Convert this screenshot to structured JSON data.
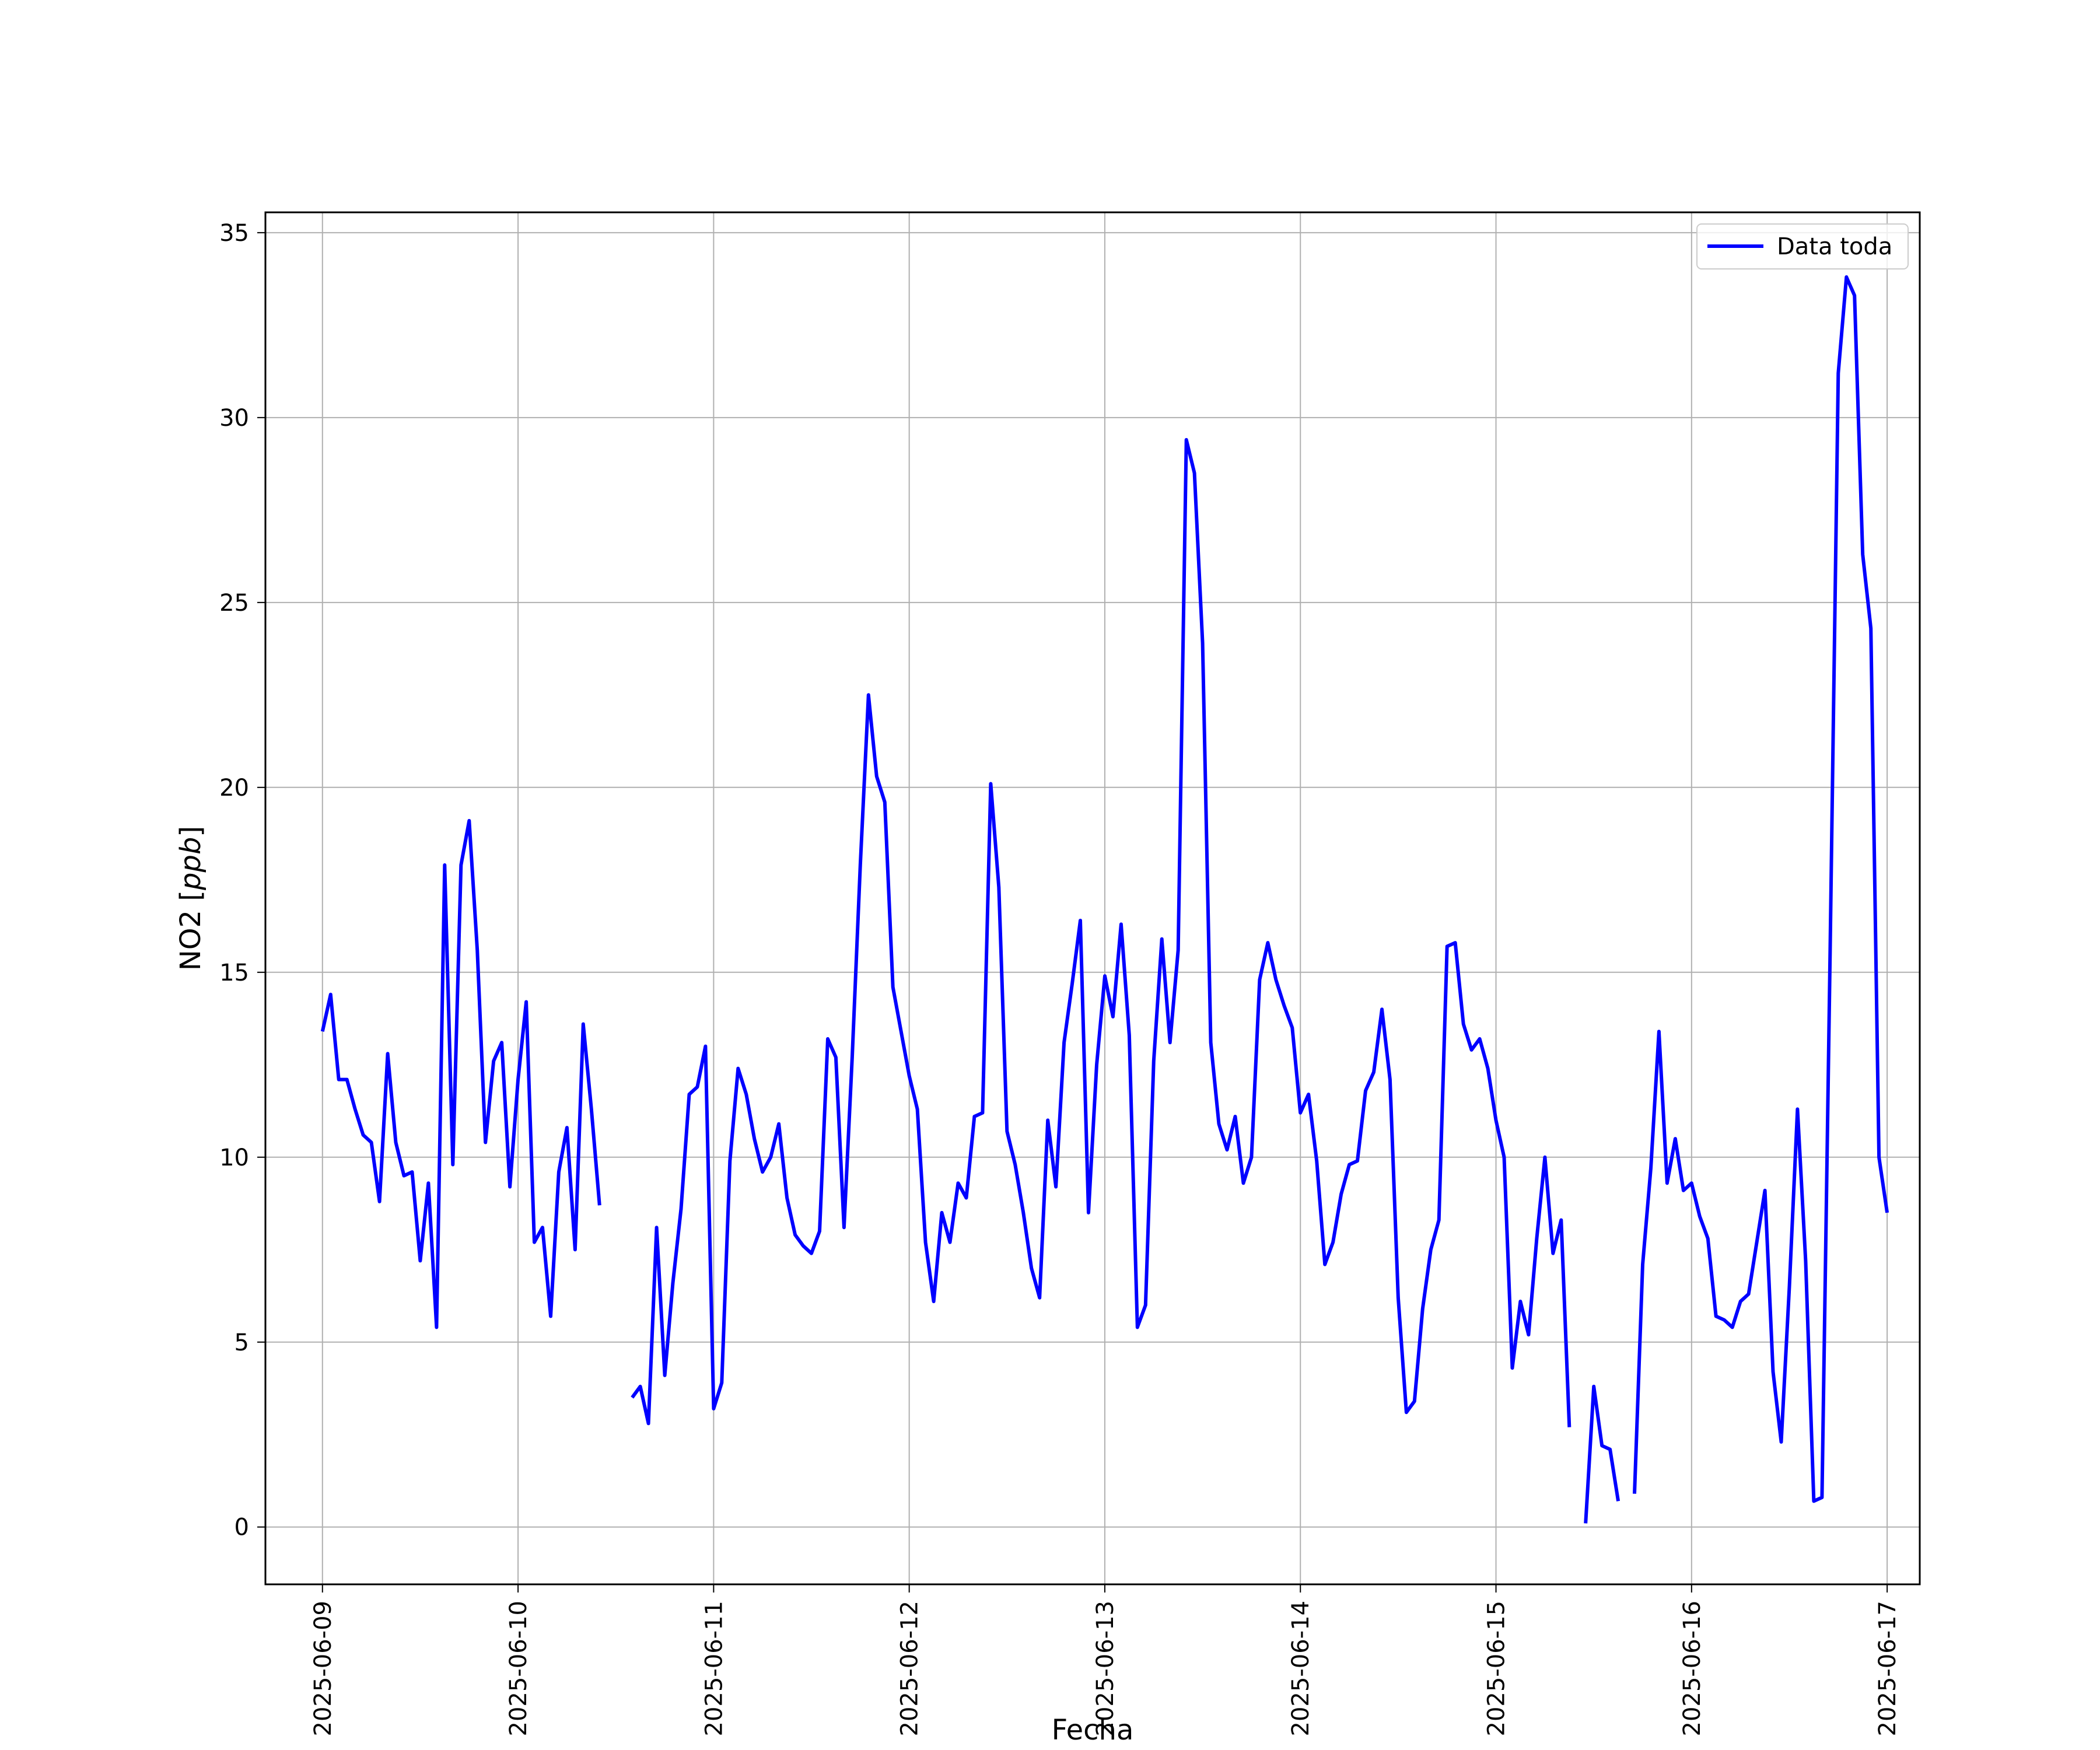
{
  "chart_data": {
    "type": "line",
    "xlabel": "Fecha",
    "ylabel_prefix": "NO2 [",
    "ylabel_unit": "ppb",
    "ylabel_suffix": "]",
    "x_ticks": [
      "2025-06-09",
      "2025-06-10",
      "2025-06-11",
      "2025-06-12",
      "2025-06-13",
      "2025-06-14",
      "2025-06-15",
      "2025-06-16",
      "2025-06-17"
    ],
    "y_ticks": [
      "0",
      "5",
      "10",
      "15",
      "20",
      "25",
      "30",
      "35"
    ],
    "xlim": [
      "2025-06-08T17:00",
      "2025-06-17T04:00"
    ],
    "ylim": [
      -1.55,
      35.55
    ],
    "grid": true,
    "legend_position": "top-right",
    "series": [
      {
        "name": "Data toda",
        "color": "#0000ff",
        "segments": [
          [
            [
              "2025-06-09T00:00",
              13.4
            ],
            [
              "2025-06-09T01:00",
              14.4
            ],
            [
              "2025-06-09T02:00",
              12.1
            ],
            [
              "2025-06-09T03:00",
              12.1
            ],
            [
              "2025-06-09T04:00",
              11.3
            ],
            [
              "2025-06-09T05:00",
              10.6
            ],
            [
              "2025-06-09T06:00",
              10.4
            ],
            [
              "2025-06-09T07:00",
              8.8
            ],
            [
              "2025-06-09T08:00",
              12.8
            ],
            [
              "2025-06-09T09:00",
              10.4
            ],
            [
              "2025-06-09T10:00",
              9.5
            ],
            [
              "2025-06-09T11:00",
              9.6
            ],
            [
              "2025-06-09T12:00",
              7.2
            ],
            [
              "2025-06-09T13:00",
              9.3
            ],
            [
              "2025-06-09T14:00",
              5.4
            ],
            [
              "2025-06-09T15:00",
              17.9
            ],
            [
              "2025-06-09T16:00",
              9.8
            ],
            [
              "2025-06-09T17:00",
              17.9
            ],
            [
              "2025-06-09T18:00",
              19.1
            ],
            [
              "2025-06-09T19:00",
              15.6
            ],
            [
              "2025-06-09T20:00",
              10.4
            ],
            [
              "2025-06-09T21:00",
              12.6
            ],
            [
              "2025-06-09T22:00",
              13.1
            ],
            [
              "2025-06-09T23:00",
              9.2
            ],
            [
              "2025-06-10T00:00",
              12.1
            ],
            [
              "2025-06-10T01:00",
              14.2
            ],
            [
              "2025-06-10T02:00",
              7.7
            ],
            [
              "2025-06-10T03:00",
              8.1
            ],
            [
              "2025-06-10T04:00",
              5.7
            ],
            [
              "2025-06-10T05:00",
              9.6
            ],
            [
              "2025-06-10T06:00",
              10.8
            ],
            [
              "2025-06-10T07:00",
              7.5
            ],
            [
              "2025-06-10T08:00",
              13.6
            ],
            [
              "2025-06-10T09:00",
              11.3
            ],
            [
              "2025-06-10T10:00",
              8.7
            ]
          ],
          [
            [
              "2025-06-10T14:00",
              3.5
            ],
            [
              "2025-06-10T15:00",
              3.8
            ],
            [
              "2025-06-10T16:00",
              2.8
            ],
            [
              "2025-06-10T17:00",
              8.1
            ],
            [
              "2025-06-10T18:00",
              4.1
            ],
            [
              "2025-06-10T19:00",
              6.6
            ],
            [
              "2025-06-10T20:00",
              8.6
            ],
            [
              "2025-06-10T21:00",
              11.7
            ],
            [
              "2025-06-10T22:00",
              11.9
            ],
            [
              "2025-06-10T23:00",
              13.0
            ],
            [
              "2025-06-11T00:00",
              3.2
            ],
            [
              "2025-06-11T01:00",
              3.9
            ],
            [
              "2025-06-11T02:00",
              9.9
            ],
            [
              "2025-06-11T03:00",
              12.4
            ],
            [
              "2025-06-11T04:00",
              11.7
            ],
            [
              "2025-06-11T05:00",
              10.5
            ],
            [
              "2025-06-11T06:00",
              9.6
            ],
            [
              "2025-06-11T07:00",
              10.0
            ],
            [
              "2025-06-11T08:00",
              10.9
            ],
            [
              "2025-06-11T09:00",
              8.9
            ],
            [
              "2025-06-11T10:00",
              7.9
            ],
            [
              "2025-06-11T11:00",
              7.6
            ],
            [
              "2025-06-11T12:00",
              7.4
            ],
            [
              "2025-06-11T13:00",
              8.0
            ],
            [
              "2025-06-11T14:00",
              13.2
            ],
            [
              "2025-06-11T15:00",
              12.7
            ],
            [
              "2025-06-11T16:00",
              8.1
            ],
            [
              "2025-06-11T17:00",
              12.7
            ],
            [
              "2025-06-11T18:00",
              17.9
            ],
            [
              "2025-06-11T19:00",
              22.5
            ],
            [
              "2025-06-11T20:00",
              20.3
            ],
            [
              "2025-06-11T21:00",
              19.6
            ],
            [
              "2025-06-11T22:00",
              14.6
            ],
            [
              "2025-06-11T23:00",
              13.4
            ],
            [
              "2025-06-12T00:00",
              12.2
            ],
            [
              "2025-06-12T01:00",
              11.3
            ],
            [
              "2025-06-12T02:00",
              7.7
            ],
            [
              "2025-06-12T03:00",
              6.1
            ],
            [
              "2025-06-12T04:00",
              8.5
            ],
            [
              "2025-06-12T05:00",
              7.7
            ],
            [
              "2025-06-12T06:00",
              9.3
            ],
            [
              "2025-06-12T07:00",
              8.9
            ],
            [
              "2025-06-12T08:00",
              11.1
            ],
            [
              "2025-06-12T09:00",
              11.2
            ],
            [
              "2025-06-12T10:00",
              20.1
            ],
            [
              "2025-06-12T11:00",
              17.3
            ],
            [
              "2025-06-12T12:00",
              10.7
            ],
            [
              "2025-06-12T13:00",
              9.8
            ],
            [
              "2025-06-12T14:00",
              8.5
            ],
            [
              "2025-06-12T15:00",
              7.0
            ],
            [
              "2025-06-12T16:00",
              6.2
            ],
            [
              "2025-06-12T17:00",
              11.0
            ],
            [
              "2025-06-12T18:00",
              9.2
            ],
            [
              "2025-06-12T19:00",
              13.1
            ],
            [
              "2025-06-12T20:00",
              14.7
            ],
            [
              "2025-06-12T21:00",
              16.4
            ],
            [
              "2025-06-12T22:00",
              8.5
            ],
            [
              "2025-06-12T23:00",
              12.5
            ],
            [
              "2025-06-13T00:00",
              14.9
            ],
            [
              "2025-06-13T01:00",
              13.8
            ],
            [
              "2025-06-13T02:00",
              16.3
            ],
            [
              "2025-06-13T03:00",
              13.3
            ],
            [
              "2025-06-13T04:00",
              5.4
            ],
            [
              "2025-06-13T05:00",
              6.0
            ],
            [
              "2025-06-13T06:00",
              12.6
            ],
            [
              "2025-06-13T07:00",
              15.9
            ],
            [
              "2025-06-13T08:00",
              13.1
            ],
            [
              "2025-06-13T09:00",
              15.6
            ],
            [
              "2025-06-13T10:00",
              29.4
            ],
            [
              "2025-06-13T11:00",
              28.5
            ],
            [
              "2025-06-13T12:00",
              23.9
            ],
            [
              "2025-06-13T13:00",
              13.1
            ],
            [
              "2025-06-13T14:00",
              10.9
            ],
            [
              "2025-06-13T15:00",
              10.2
            ],
            [
              "2025-06-13T16:00",
              11.1
            ],
            [
              "2025-06-13T17:00",
              9.3
            ],
            [
              "2025-06-13T18:00",
              10.0
            ],
            [
              "2025-06-13T19:00",
              14.8
            ],
            [
              "2025-06-13T20:00",
              15.8
            ],
            [
              "2025-06-13T21:00",
              14.8
            ],
            [
              "2025-06-13T22:00",
              14.1
            ],
            [
              "2025-06-13T23:00",
              13.5
            ],
            [
              "2025-06-14T00:00",
              11.2
            ],
            [
              "2025-06-14T01:00",
              11.7
            ],
            [
              "2025-06-14T02:00",
              9.9
            ],
            [
              "2025-06-14T03:00",
              7.1
            ],
            [
              "2025-06-14T04:00",
              7.7
            ],
            [
              "2025-06-14T05:00",
              9.0
            ],
            [
              "2025-06-14T06:00",
              9.8
            ],
            [
              "2025-06-14T07:00",
              9.9
            ],
            [
              "2025-06-14T08:00",
              11.8
            ],
            [
              "2025-06-14T09:00",
              12.3
            ],
            [
              "2025-06-14T10:00",
              14.0
            ],
            [
              "2025-06-14T11:00",
              12.1
            ],
            [
              "2025-06-14T12:00",
              6.2
            ],
            [
              "2025-06-14T13:00",
              3.1
            ],
            [
              "2025-06-14T14:00",
              3.4
            ],
            [
              "2025-06-14T15:00",
              5.9
            ],
            [
              "2025-06-14T16:00",
              7.5
            ],
            [
              "2025-06-14T17:00",
              8.3
            ],
            [
              "2025-06-14T18:00",
              15.7
            ],
            [
              "2025-06-14T19:00",
              15.8
            ],
            [
              "2025-06-14T20:00",
              13.6
            ],
            [
              "2025-06-14T21:00",
              12.9
            ],
            [
              "2025-06-14T22:00",
              13.2
            ],
            [
              "2025-06-14T23:00",
              12.4
            ],
            [
              "2025-06-15T00:00",
              11.0
            ],
            [
              "2025-06-15T01:00",
              10.0
            ],
            [
              "2025-06-15T02:00",
              4.3
            ],
            [
              "2025-06-15T03:00",
              6.1
            ],
            [
              "2025-06-15T04:00",
              5.2
            ],
            [
              "2025-06-15T05:00",
              7.8
            ],
            [
              "2025-06-15T06:00",
              10.0
            ],
            [
              "2025-06-15T07:00",
              7.4
            ],
            [
              "2025-06-15T08:00",
              8.3
            ],
            [
              "2025-06-15T09:00",
              2.7
            ]
          ],
          [
            [
              "2025-06-15T11:00",
              0.1
            ],
            [
              "2025-06-15T12:00",
              3.8
            ],
            [
              "2025-06-15T13:00",
              2.2
            ],
            [
              "2025-06-15T14:00",
              2.1
            ],
            [
              "2025-06-15T15:00",
              0.7
            ]
          ],
          [
            [
              "2025-06-15T17:00",
              0.9
            ],
            [
              "2025-06-15T18:00",
              7.1
            ],
            [
              "2025-06-15T19:00",
              9.7
            ],
            [
              "2025-06-15T20:00",
              13.4
            ],
            [
              "2025-06-15T21:00",
              9.3
            ],
            [
              "2025-06-15T22:00",
              10.5
            ],
            [
              "2025-06-15T23:00",
              9.1
            ],
            [
              "2025-06-16T00:00",
              9.3
            ],
            [
              "2025-06-16T01:00",
              8.4
            ],
            [
              "2025-06-16T02:00",
              7.8
            ],
            [
              "2025-06-16T03:00",
              5.7
            ],
            [
              "2025-06-16T04:00",
              5.6
            ],
            [
              "2025-06-16T05:00",
              5.4
            ],
            [
              "2025-06-16T06:00",
              6.1
            ],
            [
              "2025-06-16T07:00",
              6.3
            ],
            [
              "2025-06-16T08:00",
              7.7
            ],
            [
              "2025-06-16T09:00",
              9.1
            ],
            [
              "2025-06-16T10:00",
              4.2
            ],
            [
              "2025-06-16T11:00",
              2.3
            ],
            [
              "2025-06-16T12:00",
              6.5
            ],
            [
              "2025-06-16T13:00",
              11.3
            ],
            [
              "2025-06-16T14:00",
              7.2
            ],
            [
              "2025-06-16T15:00",
              0.7
            ],
            [
              "2025-06-16T16:00",
              0.8
            ],
            [
              "2025-06-16T17:00",
              15.5
            ],
            [
              "2025-06-16T18:00",
              31.2
            ],
            [
              "2025-06-16T19:00",
              33.8
            ],
            [
              "2025-06-16T20:00",
              33.3
            ],
            [
              "2025-06-16T21:00",
              26.3
            ],
            [
              "2025-06-16T22:00",
              24.3
            ],
            [
              "2025-06-16T23:00",
              10.0
            ],
            [
              "2025-06-17T00:00",
              8.5
            ]
          ]
        ]
      }
    ]
  }
}
